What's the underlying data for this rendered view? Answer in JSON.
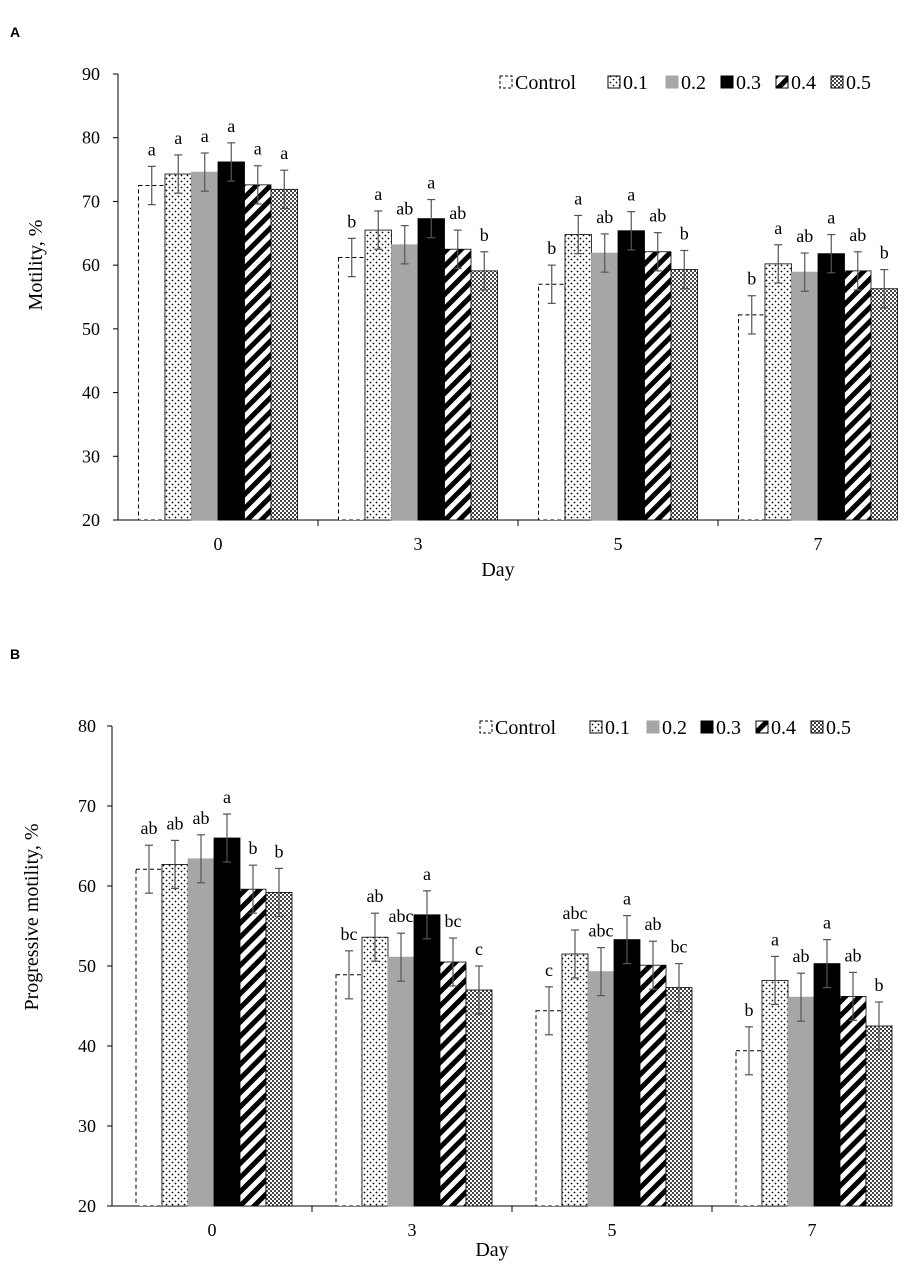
{
  "series_styles": [
    {
      "name": "Control",
      "fill": "#ffffff",
      "stroke": "#000000",
      "dash": true,
      "pattern": "none"
    },
    {
      "name": "0.1",
      "fill": "#ffffff",
      "stroke": "#000000",
      "dash": false,
      "pattern": "dots"
    },
    {
      "name": "0.2",
      "fill": "#a6a6a6",
      "stroke": "#a6a6a6",
      "dash": false,
      "pattern": "none"
    },
    {
      "name": "0.3",
      "fill": "#000000",
      "stroke": "#000000",
      "dash": false,
      "pattern": "none"
    },
    {
      "name": "0.4",
      "fill": "#ffffff",
      "stroke": "#000000",
      "dash": false,
      "pattern": "diagonal"
    },
    {
      "name": "0.5",
      "fill": "#ffffff",
      "stroke": "#000000",
      "dash": false,
      "pattern": "checker"
    }
  ],
  "chart_data": [
    {
      "panel": "A",
      "type": "bar",
      "xlabel": "Day",
      "ylabel": "Motility, %",
      "ylim": [
        20,
        90
      ],
      "yticks": [
        20,
        30,
        40,
        50,
        60,
        70,
        80,
        90
      ],
      "categories": [
        "0",
        "3",
        "5",
        "7"
      ],
      "legend_position": "top-right",
      "series": [
        {
          "name": "Control",
          "values": [
            72.5,
            61.2,
            57.0,
            52.2
          ],
          "errors": [
            3.0,
            3.0,
            3.0,
            3.0
          ],
          "labels": [
            "a",
            "b",
            "b",
            "b"
          ]
        },
        {
          "name": "0.1",
          "values": [
            74.3,
            65.5,
            64.8,
            60.2
          ],
          "errors": [
            3.0,
            3.0,
            3.0,
            3.0
          ],
          "labels": [
            "a",
            "a",
            "a",
            "a"
          ]
        },
        {
          "name": "0.2",
          "values": [
            74.6,
            63.2,
            61.9,
            58.9
          ],
          "errors": [
            3.0,
            3.0,
            3.0,
            3.0
          ],
          "labels": [
            "a",
            "ab",
            "ab",
            "ab"
          ]
        },
        {
          "name": "0.3",
          "values": [
            76.2,
            67.3,
            65.4,
            61.8
          ],
          "errors": [
            3.0,
            3.0,
            3.0,
            3.0
          ],
          "labels": [
            "a",
            "a",
            "a",
            "a"
          ]
        },
        {
          "name": "0.4",
          "values": [
            72.6,
            62.5,
            62.1,
            59.1
          ],
          "errors": [
            3.0,
            3.0,
            3.0,
            3.0
          ],
          "labels": [
            "a",
            "ab",
            "ab",
            "ab"
          ]
        },
        {
          "name": "0.5",
          "values": [
            71.9,
            59.1,
            59.3,
            56.3
          ],
          "errors": [
            3.0,
            3.0,
            3.0,
            3.0
          ],
          "labels": [
            "a",
            "b",
            "b",
            "b"
          ]
        }
      ]
    },
    {
      "panel": "B",
      "type": "bar",
      "xlabel": "Day",
      "ylabel": "Progressive motility, %",
      "ylim": [
        20,
        80
      ],
      "yticks": [
        20,
        30,
        40,
        50,
        60,
        70,
        80
      ],
      "categories": [
        "0",
        "3",
        "5",
        "7"
      ],
      "legend_position": "top-right",
      "series": [
        {
          "name": "Control",
          "values": [
            62.1,
            48.9,
            44.4,
            39.4
          ],
          "errors": [
            3.0,
            3.0,
            3.0,
            3.0
          ],
          "labels": [
            "ab",
            "bc",
            "c",
            "b"
          ]
        },
        {
          "name": "0.1",
          "values": [
            62.7,
            53.6,
            51.5,
            48.2
          ],
          "errors": [
            3.0,
            3.0,
            3.0,
            3.0
          ],
          "labels": [
            "ab",
            "ab",
            "abc",
            "a"
          ]
        },
        {
          "name": "0.2",
          "values": [
            63.4,
            51.1,
            49.3,
            46.1
          ],
          "errors": [
            3.0,
            3.0,
            3.0,
            3.0
          ],
          "labels": [
            "ab",
            "abc",
            "abc",
            "ab"
          ]
        },
        {
          "name": "0.3",
          "values": [
            66.0,
            56.4,
            53.3,
            50.3
          ],
          "errors": [
            3.0,
            3.0,
            3.0,
            3.0
          ],
          "labels": [
            "a",
            "a",
            "a",
            "a"
          ]
        },
        {
          "name": "0.4",
          "values": [
            59.6,
            50.5,
            50.1,
            46.2
          ],
          "errors": [
            3.0,
            3.0,
            3.0,
            3.0
          ],
          "labels": [
            "b",
            "bc",
            "ab",
            "ab"
          ]
        },
        {
          "name": "0.5",
          "values": [
            59.2,
            47.0,
            47.3,
            42.5
          ],
          "errors": [
            3.0,
            3.0,
            3.0,
            3.0
          ],
          "labels": [
            "b",
            "c",
            "bc",
            "b"
          ]
        }
      ]
    }
  ]
}
